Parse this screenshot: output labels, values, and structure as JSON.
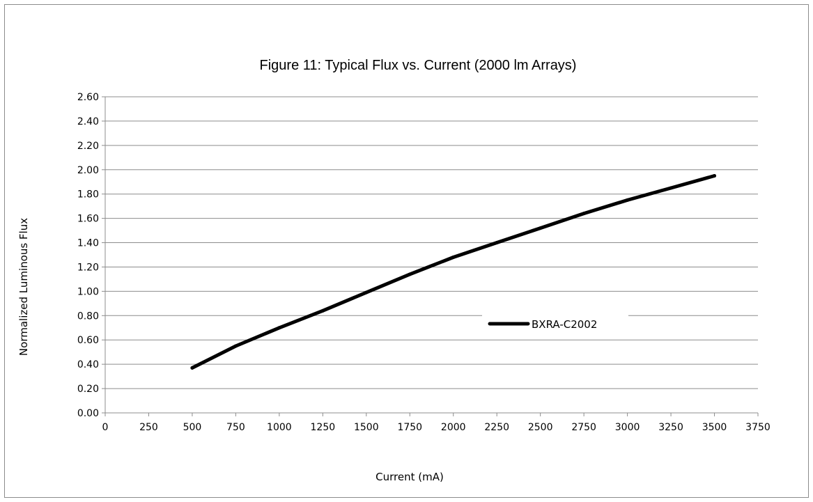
{
  "chart_data": {
    "type": "line",
    "title": "Figure 11:  Typical Flux vs. Current (2000 lm Arrays)",
    "xlabel": "Current (mA)",
    "ylabel": "Normalized Luminous Flux",
    "xlim": [
      0,
      3750
    ],
    "ylim": [
      0,
      2.6
    ],
    "x_ticks": [
      "0",
      "250",
      "500",
      "750",
      "1000",
      "1250",
      "1500",
      "1750",
      "2000",
      "2250",
      "2500",
      "2750",
      "3000",
      "3250",
      "3500",
      "3750"
    ],
    "y_ticks": [
      "0.00",
      "0.20",
      "0.40",
      "0.60",
      "0.80",
      "1.00",
      "1.20",
      "1.40",
      "1.60",
      "1.80",
      "2.00",
      "2.20",
      "2.40",
      "2.60"
    ],
    "grid": "horizontal",
    "legend": "right-center",
    "series": [
      {
        "name": "BXRA-C2002",
        "color": "#000000",
        "x": [
          500,
          750,
          1000,
          1250,
          1500,
          1750,
          2000,
          2250,
          2500,
          2750,
          3000,
          3250,
          3500
        ],
        "y": [
          0.37,
          0.55,
          0.7,
          0.84,
          0.99,
          1.14,
          1.28,
          1.4,
          1.52,
          1.64,
          1.75,
          1.85,
          1.95
        ]
      }
    ]
  }
}
